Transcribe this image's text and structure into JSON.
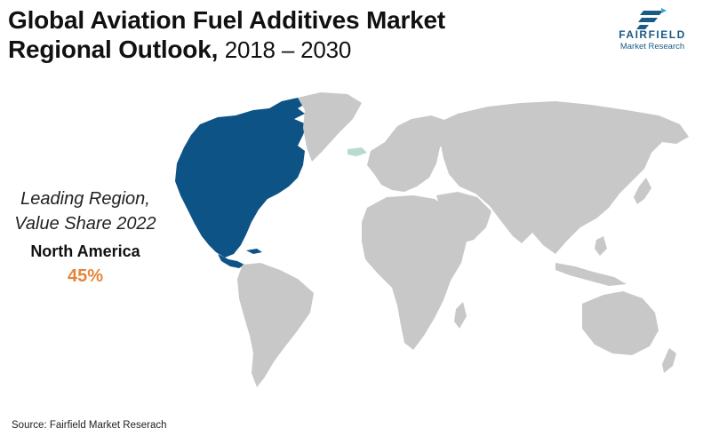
{
  "title": {
    "line1": "Global Aviation Fuel Additives Market",
    "line2": "Regional Outlook,",
    "years": "2018 – 2030"
  },
  "logo": {
    "name": "FAIRFIELD",
    "tagline": "Market Research",
    "icon": "f-arrow-logo-icon"
  },
  "callout": {
    "label_line1": "Leading Region,",
    "label_line2": "Value Share 2022",
    "region": "North America",
    "share": "45%"
  },
  "source": "Source: Fairfield Market Reserach",
  "colors": {
    "highlight": "#0d5386",
    "land": "#c8c8c8",
    "accent": "#e8843a",
    "greenland_tip": "#b7dccf"
  },
  "map": {
    "highlighted_region": "North America"
  }
}
